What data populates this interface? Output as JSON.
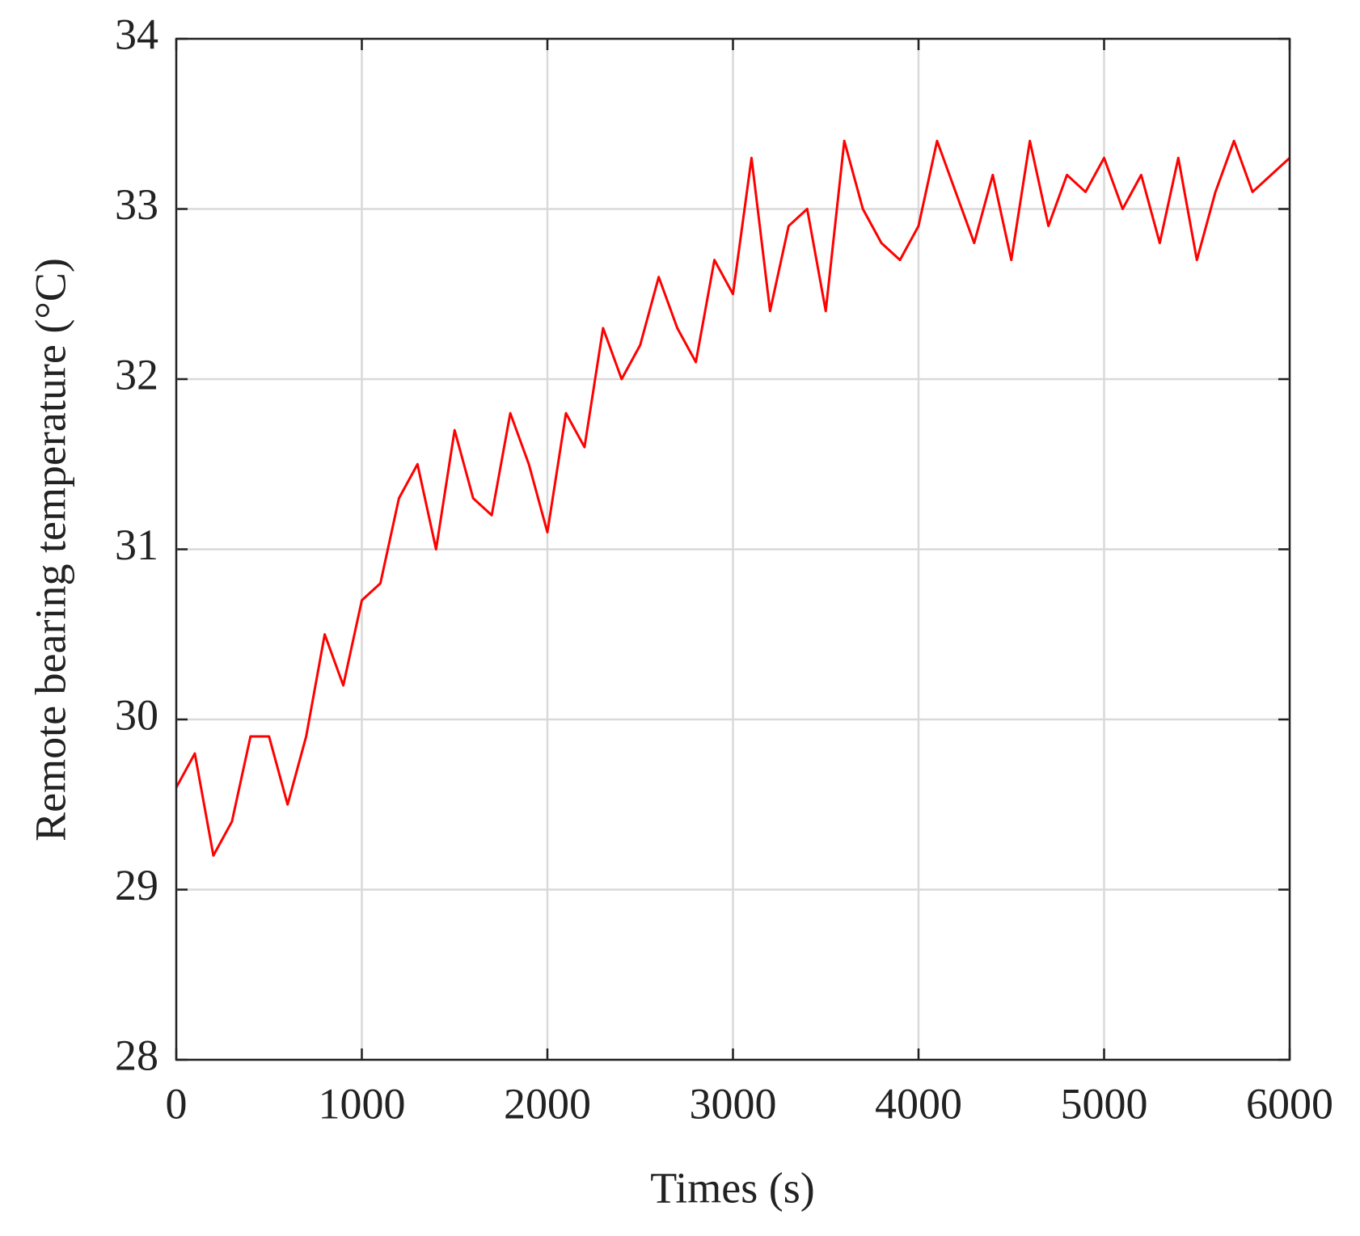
{
  "chart_data": {
    "type": "line",
    "xlabel": "Times (s)",
    "ylabel": "Remote bearing temperature (°C)",
    "x": [
      0,
      100,
      200,
      300,
      400,
      500,
      600,
      700,
      800,
      900,
      1000,
      1100,
      1200,
      1300,
      1400,
      1500,
      1600,
      1700,
      1800,
      1900,
      2000,
      2100,
      2200,
      2300,
      2400,
      2500,
      2600,
      2700,
      2800,
      2900,
      3000,
      3100,
      3200,
      3300,
      3400,
      3500,
      3600,
      3700,
      3800,
      3900,
      4000,
      4100,
      4200,
      4300,
      4400,
      4500,
      4600,
      4700,
      4800,
      4900,
      5000,
      5100,
      5200,
      5300,
      5400,
      5500,
      5600,
      5700,
      5800,
      5900,
      6000
    ],
    "series": [
      {
        "color": "#ff0000",
        "values": [
          29.6,
          29.8,
          29.2,
          29.4,
          29.9,
          29.9,
          29.5,
          29.9,
          30.5,
          30.2,
          30.7,
          30.8,
          31.3,
          31.5,
          31.0,
          31.7,
          31.3,
          31.2,
          31.8,
          31.5,
          31.1,
          31.8,
          31.6,
          32.3,
          32.0,
          32.2,
          32.6,
          32.3,
          32.1,
          32.7,
          32.5,
          33.3,
          32.4,
          32.9,
          33.0,
          32.4,
          33.4,
          33.0,
          32.8,
          32.7,
          32.9,
          33.4,
          33.1,
          32.8,
          33.2,
          32.7,
          33.4,
          32.9,
          33.2,
          33.1,
          33.3,
          33.0,
          33.2,
          32.8,
          33.3,
          32.7,
          33.1,
          33.4,
          33.1,
          33.2,
          33.3
        ]
      }
    ],
    "xlim": [
      0,
      6000
    ],
    "xticks": [
      0,
      1000,
      2000,
      3000,
      4000,
      5000,
      6000
    ],
    "ylim": [
      28,
      34
    ],
    "yticks": [
      28,
      29,
      30,
      31,
      32,
      33,
      34
    ],
    "grid": true
  }
}
